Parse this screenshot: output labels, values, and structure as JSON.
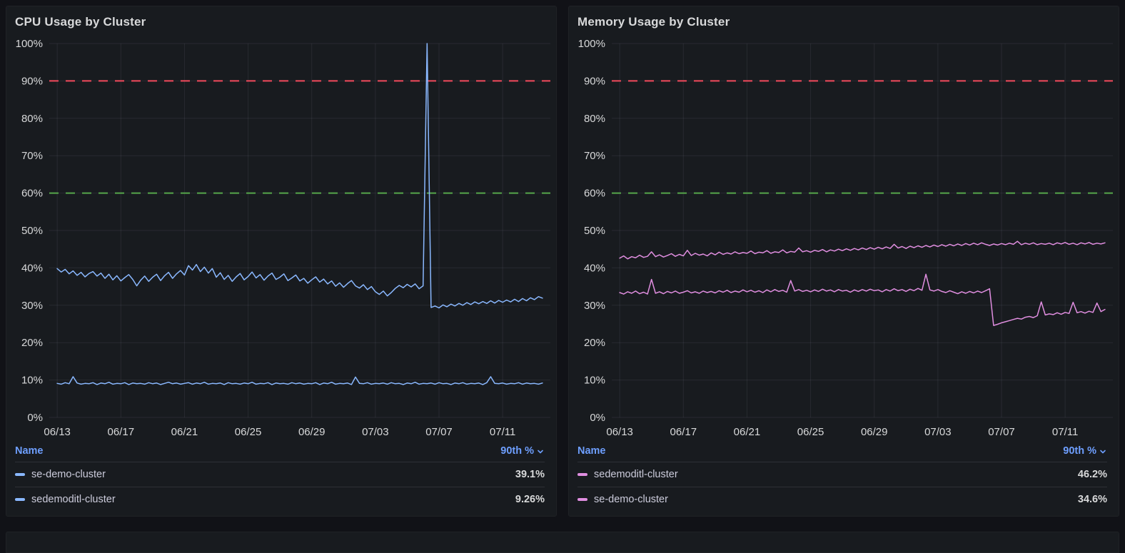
{
  "colors": {
    "page_background": "#111217",
    "panel_background": "#181b1f",
    "text": "#d8d9da",
    "link_blue": "#6E9FFF",
    "cpu_series_blue": "#8AB8FF",
    "memory_series_pink": "#E08EE0",
    "threshold_red": "#F2495C",
    "threshold_green": "#56A64B",
    "grid": "rgba(204,204,220,0.09)"
  },
  "chart_data": [
    {
      "type": "line",
      "title": "CPU Usage by Cluster",
      "xlabel": "",
      "ylabel": "",
      "ylim": [
        0,
        100
      ],
      "xlim": [
        -0.5,
        31
      ],
      "grid": true,
      "y_ticks": [
        {
          "v": 0,
          "label": "0%"
        },
        {
          "v": 10,
          "label": "10%"
        },
        {
          "v": 20,
          "label": "20%"
        },
        {
          "v": 30,
          "label": "30%"
        },
        {
          "v": 40,
          "label": "40%"
        },
        {
          "v": 50,
          "label": "50%"
        },
        {
          "v": 60,
          "label": "60%"
        },
        {
          "v": 70,
          "label": "70%"
        },
        {
          "v": 80,
          "label": "80%"
        },
        {
          "v": 90,
          "label": "90%"
        },
        {
          "v": 100,
          "label": "100%"
        }
      ],
      "x_ticks": [
        {
          "v": 0,
          "label": "06/13"
        },
        {
          "v": 4,
          "label": "06/17"
        },
        {
          "v": 8,
          "label": "06/21"
        },
        {
          "v": 12,
          "label": "06/25"
        },
        {
          "v": 16,
          "label": "06/29"
        },
        {
          "v": 20,
          "label": "07/03"
        },
        {
          "v": 24,
          "label": "07/07"
        },
        {
          "v": 28,
          "label": "07/11"
        }
      ],
      "thresholds": [
        {
          "value": 90,
          "color": "#F2495C"
        },
        {
          "value": 60,
          "color": "#56A64B"
        }
      ],
      "legend": {
        "position": "bottom",
        "name_header": "Name",
        "value_header": "90th %",
        "rows": [
          {
            "name": "se-demo-cluster",
            "value": "39.1%"
          },
          {
            "name": "sedemoditl-cluster",
            "value": "9.26%"
          }
        ]
      },
      "series": [
        {
          "name": "se-demo-cluster",
          "color": "#8AB8FF",
          "x_start": 0,
          "x_step": 0.25,
          "values": [
            39.8,
            38.9,
            39.6,
            38.4,
            39.2,
            38.0,
            38.8,
            37.6,
            38.5,
            39.0,
            37.8,
            38.6,
            37.2,
            38.3,
            36.8,
            37.9,
            36.5,
            37.4,
            38.2,
            36.9,
            35.2,
            36.7,
            37.8,
            36.4,
            37.5,
            38.3,
            36.6,
            37.9,
            38.8,
            37.2,
            38.4,
            39.3,
            38.1,
            40.6,
            39.4,
            40.9,
            39.0,
            40.2,
            38.6,
            39.8,
            37.5,
            38.7,
            36.9,
            38.0,
            36.4,
            37.6,
            38.5,
            36.8,
            37.7,
            38.9,
            37.3,
            38.2,
            36.7,
            37.8,
            38.6,
            36.9,
            37.5,
            38.4,
            36.6,
            37.3,
            38.1,
            36.5,
            37.2,
            35.9,
            36.8,
            37.6,
            36.2,
            37.0,
            35.7,
            36.5,
            35.1,
            36.0,
            34.8,
            35.8,
            36.6,
            35.2,
            34.6,
            35.5,
            34.2,
            35.0,
            33.6,
            32.9,
            33.8,
            32.5,
            33.4,
            34.5,
            35.3,
            34.7,
            35.6,
            34.9,
            35.7,
            34.4,
            35.2,
            100,
            29.4,
            29.8,
            29.3,
            30.1,
            29.6,
            30.3,
            29.8,
            30.5,
            30.0,
            30.7,
            30.2,
            30.9,
            30.4,
            31.0,
            30.5,
            31.2,
            30.6,
            31.3,
            30.8,
            31.4,
            30.9,
            31.6,
            31.0,
            31.8,
            31.2,
            32.0,
            31.5,
            32.3,
            31.9
          ]
        },
        {
          "name": "sedemoditl-cluster",
          "color": "#8AB8FF",
          "x_start": 0,
          "x_step": 0.25,
          "values": [
            9.1,
            8.9,
            9.3,
            9.0,
            10.9,
            9.2,
            8.9,
            9.1,
            9.0,
            9.3,
            8.8,
            9.2,
            9.0,
            9.4,
            8.9,
            9.1,
            9.0,
            9.3,
            8.8,
            9.2,
            9.0,
            9.1,
            8.9,
            9.3,
            9.0,
            9.2,
            8.8,
            9.1,
            9.4,
            9.0,
            9.2,
            8.9,
            9.1,
            9.3,
            8.9,
            9.2,
            9.0,
            9.4,
            8.9,
            9.1,
            9.0,
            9.2,
            8.8,
            9.3,
            9.0,
            9.1,
            8.9,
            9.2,
            9.0,
            9.4,
            8.9,
            9.1,
            9.0,
            9.3,
            8.8,
            9.2,
            9.0,
            9.1,
            8.9,
            9.3,
            9.0,
            9.2,
            8.9,
            9.1,
            9.0,
            9.3,
            8.8,
            9.2,
            9.0,
            9.4,
            8.9,
            9.1,
            9.0,
            9.2,
            8.8,
            10.8,
            9.1,
            9.0,
            9.3,
            8.9,
            9.1,
            9.0,
            9.2,
            8.9,
            9.3,
            9.0,
            9.1,
            8.8,
            9.2,
            9.0,
            9.4,
            8.9,
            9.1,
            9.0,
            9.2,
            8.9,
            9.3,
            9.0,
            9.1,
            8.8,
            9.2,
            9.0,
            9.3,
            8.9,
            9.1,
            9.0,
            9.2,
            8.8,
            9.3,
            10.9,
            9.1,
            9.0,
            9.2,
            8.9,
            9.1,
            9.0,
            9.3,
            8.9,
            9.2,
            9.0,
            9.1,
            8.9,
            9.2
          ]
        }
      ]
    },
    {
      "type": "line",
      "title": "Memory Usage by Cluster",
      "xlabel": "",
      "ylabel": "",
      "ylim": [
        0,
        100
      ],
      "xlim": [
        -0.5,
        31
      ],
      "grid": true,
      "y_ticks": [
        {
          "v": 0,
          "label": "0%"
        },
        {
          "v": 10,
          "label": "10%"
        },
        {
          "v": 20,
          "label": "20%"
        },
        {
          "v": 30,
          "label": "30%"
        },
        {
          "v": 40,
          "label": "40%"
        },
        {
          "v": 50,
          "label": "50%"
        },
        {
          "v": 60,
          "label": "60%"
        },
        {
          "v": 70,
          "label": "70%"
        },
        {
          "v": 80,
          "label": "80%"
        },
        {
          "v": 90,
          "label": "90%"
        },
        {
          "v": 100,
          "label": "100%"
        }
      ],
      "x_ticks": [
        {
          "v": 0,
          "label": "06/13"
        },
        {
          "v": 4,
          "label": "06/17"
        },
        {
          "v": 8,
          "label": "06/21"
        },
        {
          "v": 12,
          "label": "06/25"
        },
        {
          "v": 16,
          "label": "06/29"
        },
        {
          "v": 20,
          "label": "07/03"
        },
        {
          "v": 24,
          "label": "07/07"
        },
        {
          "v": 28,
          "label": "07/11"
        }
      ],
      "thresholds": [
        {
          "value": 90,
          "color": "#F2495C"
        },
        {
          "value": 60,
          "color": "#56A64B"
        }
      ],
      "legend": {
        "position": "bottom",
        "name_header": "Name",
        "value_header": "90th %",
        "rows": [
          {
            "name": "sedemoditl-cluster",
            "value": "46.2%"
          },
          {
            "name": "se-demo-cluster",
            "value": "34.6%"
          }
        ]
      },
      "series": [
        {
          "name": "sedemoditl-cluster",
          "color": "#E08EE0",
          "x_start": 0,
          "x_step": 0.25,
          "values": [
            42.6,
            43.2,
            42.4,
            43.0,
            42.7,
            43.4,
            42.8,
            43.1,
            44.3,
            43.0,
            43.5,
            42.9,
            43.3,
            43.8,
            43.1,
            43.6,
            43.2,
            44.7,
            43.3,
            43.9,
            43.4,
            43.7,
            43.2,
            44.0,
            43.5,
            44.2,
            43.6,
            44.0,
            43.7,
            44.3,
            43.8,
            44.1,
            43.9,
            44.5,
            43.8,
            44.2,
            44.0,
            44.6,
            43.9,
            44.3,
            44.1,
            44.8,
            44.0,
            44.4,
            44.2,
            45.3,
            44.3,
            44.6,
            44.2,
            44.7,
            44.4,
            44.9,
            44.3,
            44.8,
            44.5,
            45.0,
            44.6,
            45.1,
            44.7,
            45.2,
            44.8,
            45.3,
            44.9,
            45.4,
            45.0,
            45.5,
            45.1,
            45.6,
            45.2,
            46.3,
            45.3,
            45.7,
            45.2,
            45.8,
            45.4,
            45.9,
            45.5,
            46.0,
            45.6,
            46.1,
            45.7,
            46.2,
            45.8,
            46.3,
            45.9,
            46.4,
            46.0,
            46.5,
            46.1,
            46.6,
            46.2,
            46.7,
            46.3,
            46.0,
            46.4,
            46.1,
            46.5,
            46.2,
            46.6,
            46.3,
            47.1,
            46.2,
            46.6,
            46.3,
            46.7,
            46.2,
            46.5,
            46.3,
            46.6,
            46.2,
            46.7,
            46.4,
            46.8,
            46.3,
            46.6,
            46.2,
            46.7,
            46.4,
            46.8,
            46.3,
            46.6,
            46.4,
            46.7
          ]
        },
        {
          "name": "se-demo-cluster",
          "color": "#E08EE0",
          "x_start": 0,
          "x_step": 0.25,
          "values": [
            33.4,
            33.0,
            33.6,
            33.2,
            33.8,
            33.1,
            33.5,
            33.0,
            36.9,
            33.2,
            33.6,
            33.1,
            33.7,
            33.3,
            33.8,
            33.2,
            33.5,
            33.9,
            33.3,
            33.6,
            33.2,
            33.8,
            33.4,
            33.7,
            33.3,
            33.9,
            33.5,
            34.0,
            33.4,
            33.8,
            33.5,
            34.1,
            33.6,
            34.0,
            33.5,
            33.9,
            33.4,
            34.1,
            33.6,
            34.2,
            33.7,
            34.0,
            33.5,
            36.6,
            33.8,
            34.2,
            33.7,
            34.0,
            33.6,
            34.1,
            33.7,
            34.3,
            33.8,
            34.1,
            33.6,
            34.2,
            33.8,
            34.0,
            33.5,
            34.1,
            33.7,
            34.2,
            33.8,
            34.3,
            33.9,
            34.1,
            33.6,
            34.2,
            33.8,
            34.4,
            33.9,
            34.2,
            33.7,
            34.3,
            33.9,
            34.5,
            34.0,
            38.3,
            34.1,
            33.8,
            34.2,
            33.7,
            33.4,
            33.9,
            33.5,
            33.1,
            33.6,
            33.2,
            33.7,
            33.3,
            33.8,
            33.4,
            33.9,
            34.4,
            24.6,
            24.9,
            25.3,
            25.6,
            25.9,
            26.2,
            26.5,
            26.3,
            26.8,
            27.0,
            26.7,
            27.2,
            30.9,
            27.4,
            27.7,
            27.5,
            28.0,
            27.6,
            28.1,
            27.8,
            30.8,
            28.0,
            28.3,
            27.9,
            28.4,
            28.1,
            30.6,
            28.3,
            28.9
          ]
        }
      ]
    }
  ]
}
